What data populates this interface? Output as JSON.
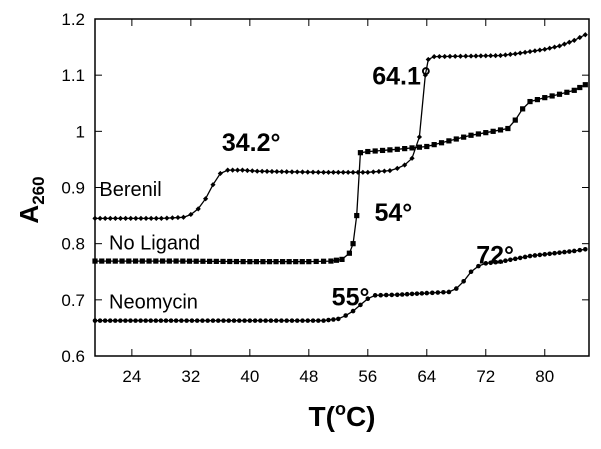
{
  "chart_data": {
    "type": "line",
    "xlabel": "T(oC)",
    "xlabel_main": "T(",
    "xlabel_sup": "o",
    "xlabel_end": "C)",
    "ylabel": "A260",
    "ylabel_main": "A",
    "ylabel_sub": "260",
    "xlim": [
      19,
      86
    ],
    "ylim": [
      0.6,
      1.2
    ],
    "xticks": [
      24,
      32,
      40,
      48,
      56,
      64,
      72,
      80
    ],
    "yticks": [
      0.6,
      0.7,
      0.8,
      0.9,
      1,
      1.1,
      1.2
    ],
    "yticklabels": [
      "0.6",
      "0.7",
      "0.8",
      "0.9",
      "1",
      "1.1",
      "1.2"
    ],
    "grid": false,
    "series": [
      {
        "name": "Berenil",
        "marker": "diamond",
        "points": [
          [
            19,
            0.845
          ],
          [
            28,
            0.845
          ],
          [
            31,
            0.847
          ],
          [
            32,
            0.852
          ],
          [
            33,
            0.862
          ],
          [
            34,
            0.88
          ],
          [
            35,
            0.905
          ],
          [
            36,
            0.925
          ],
          [
            37,
            0.931
          ],
          [
            39,
            0.931
          ],
          [
            41,
            0.929
          ],
          [
            45,
            0.928
          ],
          [
            50,
            0.927
          ],
          [
            56,
            0.927
          ],
          [
            59,
            0.93
          ],
          [
            60,
            0.934
          ],
          [
            61,
            0.94
          ],
          [
            62,
            0.952
          ],
          [
            63,
            0.99
          ],
          [
            63.8,
            1.1
          ],
          [
            64.2,
            1.128
          ],
          [
            65,
            1.133
          ],
          [
            70,
            1.134
          ],
          [
            74,
            1.135
          ],
          [
            76,
            1.138
          ],
          [
            78,
            1.142
          ],
          [
            80,
            1.146
          ],
          [
            82,
            1.152
          ],
          [
            84,
            1.162
          ],
          [
            85.5,
            1.172
          ]
        ]
      },
      {
        "name": "No Ligand",
        "marker": "square",
        "points": [
          [
            19,
            0.769
          ],
          [
            30,
            0.769
          ],
          [
            40,
            0.768
          ],
          [
            48,
            0.768
          ],
          [
            51,
            0.769
          ],
          [
            52.5,
            0.772
          ],
          [
            53.5,
            0.783
          ],
          [
            54,
            0.8
          ],
          [
            54.5,
            0.85
          ],
          [
            55,
            0.962
          ],
          [
            56,
            0.964
          ],
          [
            60,
            0.968
          ],
          [
            64,
            0.973
          ],
          [
            67,
            0.983
          ],
          [
            70,
            0.993
          ],
          [
            73,
            1.0
          ],
          [
            75,
            1.005
          ],
          [
            76,
            1.02
          ],
          [
            77,
            1.04
          ],
          [
            78,
            1.053
          ],
          [
            80,
            1.06
          ],
          [
            82,
            1.066
          ],
          [
            84,
            1.073
          ],
          [
            85.5,
            1.083
          ]
        ]
      },
      {
        "name": "Neomycin",
        "marker": "circle",
        "points": [
          [
            19,
            0.663
          ],
          [
            30,
            0.663
          ],
          [
            40,
            0.663
          ],
          [
            50,
            0.663
          ],
          [
            52,
            0.666
          ],
          [
            53,
            0.672
          ],
          [
            54,
            0.68
          ],
          [
            55,
            0.691
          ],
          [
            56,
            0.702
          ],
          [
            57,
            0.708
          ],
          [
            60,
            0.709
          ],
          [
            64,
            0.712
          ],
          [
            67,
            0.714
          ],
          [
            68,
            0.72
          ],
          [
            69,
            0.733
          ],
          [
            70,
            0.75
          ],
          [
            71,
            0.76
          ],
          [
            72,
            0.765
          ],
          [
            74,
            0.768
          ],
          [
            76,
            0.773
          ],
          [
            78,
            0.778
          ],
          [
            80,
            0.781
          ],
          [
            82,
            0.784
          ],
          [
            84,
            0.787
          ],
          [
            85.5,
            0.79
          ]
        ]
      }
    ],
    "annotations": [
      {
        "text": "34.2°",
        "x": 36.2,
        "y": 0.965
      },
      {
        "text": "64.1°",
        "x": 56.6,
        "y": 1.083
      },
      {
        "text": "54°",
        "x": 56.9,
        "y": 0.84
      },
      {
        "text": "72°",
        "x": 70.7,
        "y": 0.765
      },
      {
        "text": "55°",
        "x": 51.1,
        "y": 0.69
      }
    ],
    "series_labels": [
      {
        "text": "Berenil",
        "x": 19.6,
        "y": 0.885
      },
      {
        "text": "No Ligand",
        "x": 20.9,
        "y": 0.79
      },
      {
        "text": "Neomycin",
        "x": 20.9,
        "y": 0.685
      }
    ]
  }
}
